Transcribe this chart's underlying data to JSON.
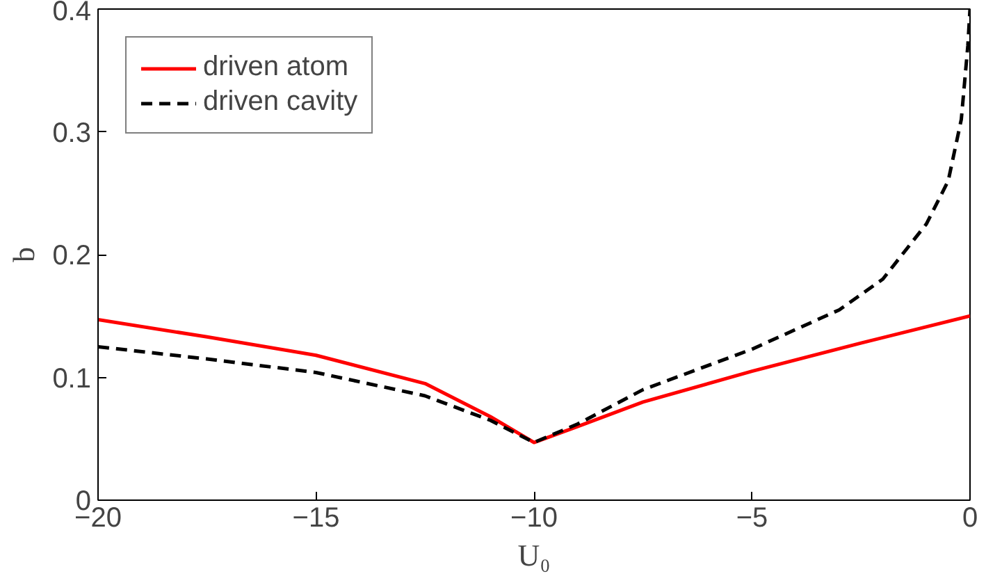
{
  "chart_data": {
    "type": "line",
    "xlabel": "U₀",
    "ylabel": "b",
    "xlim": [
      -20,
      0
    ],
    "ylim": [
      0,
      0.4
    ],
    "xticks": [
      -20,
      -15,
      -10,
      -5,
      0
    ],
    "yticks": [
      0,
      0.1,
      0.2,
      0.3,
      0.4
    ],
    "grid": false,
    "legend": "top left",
    "marker": "none",
    "series": [
      {
        "name": "driven atom",
        "color": "#ff0000",
        "line_style": "solid",
        "x": [
          -20,
          -17.5,
          -15,
          -12.5,
          -11,
          -10,
          -9,
          -7.5,
          -5,
          -2.5,
          0
        ],
        "values": [
          0.147,
          0.133,
          0.118,
          0.095,
          0.068,
          0.047,
          0.06,
          0.08,
          0.105,
          0.128,
          0.15
        ]
      },
      {
        "name": "driven cavity",
        "color": "#000000",
        "line_style": "dashed",
        "x": [
          -20,
          -17.5,
          -15,
          -12.5,
          -11,
          -10,
          -9,
          -7.5,
          -5,
          -3,
          -2,
          -1,
          -0.5,
          -0.2,
          -0.05,
          0
        ],
        "values": [
          0.125,
          0.115,
          0.104,
          0.085,
          0.065,
          0.047,
          0.062,
          0.09,
          0.123,
          0.155,
          0.18,
          0.225,
          0.26,
          0.31,
          0.37,
          0.4
        ]
      }
    ]
  }
}
